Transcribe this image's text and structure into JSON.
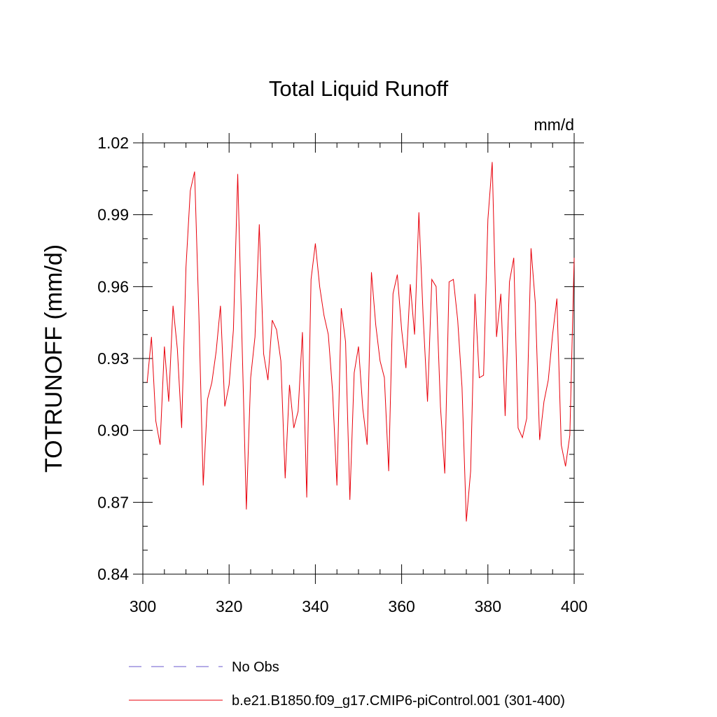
{
  "chart_data": {
    "type": "line",
    "title": "Total Liquid Runoff",
    "units_label": "mm/d",
    "ylabel": "TOTRUNOFF  (mm/d)",
    "xlabel": "",
    "xlim": [
      300,
      400
    ],
    "ylim": [
      0.84,
      1.02
    ],
    "x_ticks": [
      300,
      320,
      340,
      360,
      380,
      400
    ],
    "x_tick_labels": [
      "300",
      "320",
      "340",
      "360",
      "380",
      "400"
    ],
    "y_ticks": [
      0.84,
      0.87,
      0.9,
      0.93,
      0.96,
      0.99,
      1.02
    ],
    "y_tick_labels": [
      "0.84",
      "0.87",
      "0.90",
      "0.93",
      "0.96",
      "0.99",
      "1.02"
    ],
    "x_minor_step": 5,
    "y_minor_step": 0.01,
    "grid": false,
    "legend_position": "bottom",
    "legend": [
      {
        "label": "No Obs",
        "style": "dashed",
        "color": "#6a5acd"
      },
      {
        "label": "b.e21.B1850.f09_g17.CMIP6-piControl.001 (301-400)",
        "style": "solid",
        "color": "#e8000b"
      }
    ],
    "series": [
      {
        "name": "b.e21.B1850.f09_g17.CMIP6-piControl.001 (301-400)",
        "color": "#e8000b",
        "x": [
          301,
          302,
          303,
          304,
          305,
          306,
          307,
          308,
          309,
          310,
          311,
          312,
          313,
          314,
          315,
          316,
          317,
          318,
          319,
          320,
          321,
          322,
          323,
          324,
          325,
          326,
          327,
          328,
          329,
          330,
          331,
          332,
          333,
          334,
          335,
          336,
          337,
          338,
          339,
          340,
          341,
          342,
          343,
          344,
          345,
          346,
          347,
          348,
          349,
          350,
          351,
          352,
          353,
          354,
          355,
          356,
          357,
          358,
          359,
          360,
          361,
          362,
          363,
          364,
          365,
          366,
          367,
          368,
          369,
          370,
          371,
          372,
          373,
          374,
          375,
          376,
          377,
          378,
          379,
          380,
          381,
          382,
          383,
          384,
          385,
          386,
          387,
          388,
          389,
          390,
          391,
          392,
          393,
          394,
          395,
          396,
          397,
          398,
          399,
          400
        ],
        "values": [
          0.92,
          0.939,
          0.904,
          0.894,
          0.935,
          0.912,
          0.952,
          0.934,
          0.901,
          0.968,
          1.0,
          1.008,
          0.948,
          0.877,
          0.913,
          0.92,
          0.933,
          0.952,
          0.91,
          0.919,
          0.942,
          1.007,
          0.937,
          0.867,
          0.922,
          0.939,
          0.986,
          0.932,
          0.921,
          0.946,
          0.942,
          0.929,
          0.88,
          0.919,
          0.901,
          0.908,
          0.941,
          0.872,
          0.963,
          0.978,
          0.96,
          0.948,
          0.94,
          0.916,
          0.877,
          0.951,
          0.937,
          0.871,
          0.924,
          0.935,
          0.909,
          0.894,
          0.966,
          0.944,
          0.929,
          0.922,
          0.883,
          0.957,
          0.965,
          0.942,
          0.926,
          0.961,
          0.94,
          0.991,
          0.947,
          0.912,
          0.963,
          0.96,
          0.91,
          0.882,
          0.962,
          0.963,
          0.946,
          0.918,
          0.862,
          0.883,
          0.957,
          0.922,
          0.923,
          0.988,
          1.012,
          0.939,
          0.957,
          0.906,
          0.962,
          0.972,
          0.901,
          0.897,
          0.905,
          0.976,
          0.953,
          0.896,
          0.912,
          0.921,
          0.94,
          0.955,
          0.894,
          0.885,
          0.898,
          0.972
        ]
      }
    ]
  }
}
